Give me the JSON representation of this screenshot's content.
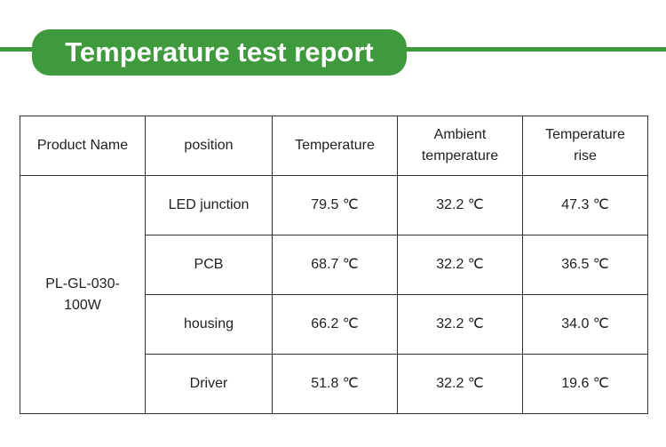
{
  "header": {
    "title": "Temperature test report"
  },
  "table": {
    "columns": [
      "Product Name",
      "position",
      "Temperature",
      "Ambient temperature",
      "Temperature rise"
    ],
    "product": "PL-GL-030-100W",
    "rows": [
      [
        "LED junction",
        "79.5 ℃",
        "32.2 ℃",
        "47.3 ℃"
      ],
      [
        "PCB",
        "68.7 ℃",
        "32.2 ℃",
        "36.5 ℃"
      ],
      [
        "housing",
        "66.2 ℃",
        "32.2 ℃",
        "34.0 ℃"
      ],
      [
        "Driver",
        "51.8 ℃",
        "32.2 ℃",
        "19.6 ℃"
      ]
    ]
  }
}
